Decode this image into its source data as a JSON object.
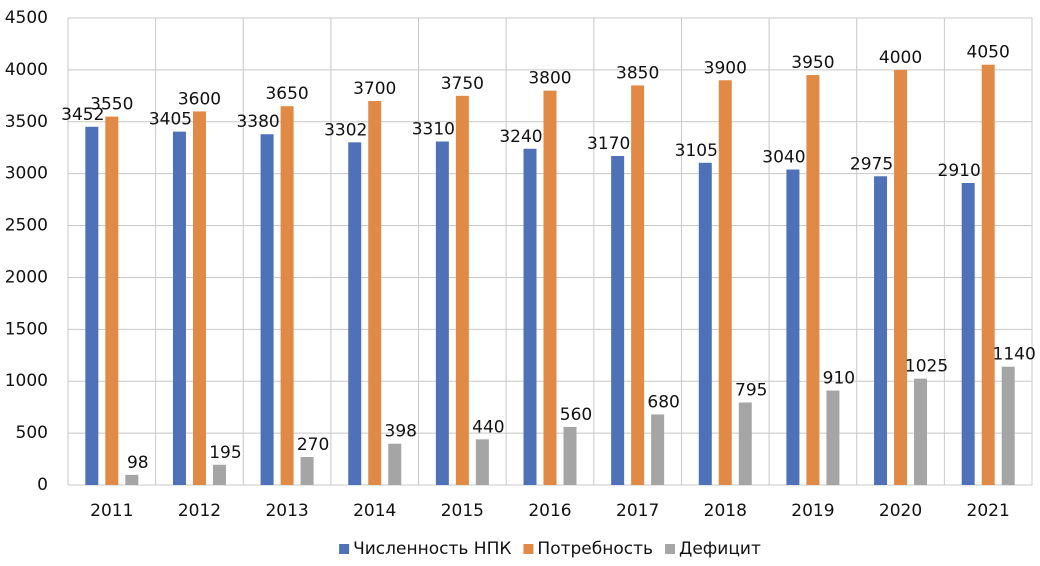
{
  "chart_data": {
    "type": "bar",
    "categories": [
      "2011",
      "2012",
      "2013",
      "2014",
      "2015",
      "2016",
      "2017",
      "2018",
      "2019",
      "2020",
      "2021"
    ],
    "series": [
      {
        "name": "Численность НПК",
        "color": "#4f71b8",
        "values": [
          3452,
          3405,
          3380,
          3302,
          3310,
          3240,
          3170,
          3105,
          3040,
          2975,
          2910
        ]
      },
      {
        "name": "Потребность",
        "color": "#e08a45",
        "values": [
          3550,
          3600,
          3650,
          3700,
          3750,
          3800,
          3850,
          3900,
          3950,
          4000,
          4050
        ]
      },
      {
        "name": "Дефицит",
        "color": "#a5a5a5",
        "values": [
          98,
          195,
          270,
          398,
          440,
          560,
          680,
          795,
          910,
          1025,
          1140
        ]
      }
    ],
    "ylim": [
      0,
      4500
    ],
    "yticks": [
      0,
      500,
      1000,
      1500,
      2000,
      2500,
      3000,
      3500,
      4000,
      4500
    ],
    "grid": true,
    "legend": "bottom"
  }
}
